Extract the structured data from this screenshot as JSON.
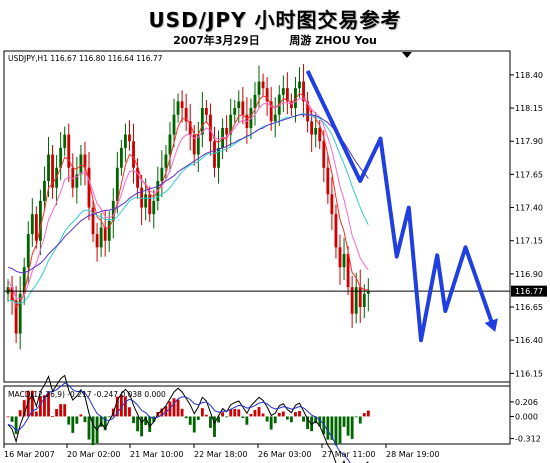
{
  "header": {
    "title": "USD/JPY 小时图交易参考",
    "subtitle_date": "2007年3月29日",
    "subtitle_author": "周游  ZHOU  You"
  },
  "main_panel": {
    "info_label": "USDJPY,H1  116.67 116.80 116.64 116.77",
    "price_badge": "116.77",
    "y_tick_labels": [
      "118.40",
      "118.15",
      "117.90",
      "117.65",
      "117.40",
      "117.15",
      "116.90",
      "116.65",
      "116.40",
      "116.15"
    ]
  },
  "macd_panel": {
    "info_label": "MACD(12,26,9) -0.217 -0.247 0.038 0.000",
    "y_tick_labels": [
      "0.206",
      "0.000",
      "-0.312"
    ]
  },
  "x_tick_labels": [
    "16 Mar 2007",
    "20 Mar 02:00",
    "21 Mar 10:00",
    "22 Mar 18:00",
    "26 Mar 03:00",
    "27 Mar 11:00",
    "28 Mar 19:00"
  ],
  "colors": {
    "bull_candle": "#006400",
    "bear_candle": "#cc0000",
    "annotation_arrow": "#1f3fe0",
    "ma_fast": "#ff2a2a",
    "ma_mid": "#ff66cc",
    "ma_cyan": "#33cccc",
    "ma_slow": "#5533cc",
    "background": "#ffffff"
  },
  "chart_data": [
    {
      "type": "candlestick",
      "symbol": "USDJPY",
      "timeframe": "H1",
      "last_bar": {
        "open": 116.67,
        "high": 116.8,
        "low": 116.64,
        "close": 116.77
      },
      "current_price": 116.77,
      "ylim": [
        116.1,
        118.55
      ],
      "y_ticks": [
        118.4,
        118.15,
        117.9,
        117.65,
        117.4,
        117.15,
        116.9,
        116.65,
        116.4,
        116.15
      ],
      "closes": [
        116.8,
        116.7,
        116.45,
        116.75,
        116.95,
        117.2,
        117.35,
        117.15,
        117.45,
        117.6,
        117.8,
        117.55,
        117.7,
        117.85,
        117.95,
        117.7,
        117.55,
        117.65,
        117.8,
        117.7,
        117.4,
        117.2,
        117.1,
        117.25,
        117.15,
        117.3,
        117.45,
        117.7,
        117.85,
        117.95,
        117.9,
        117.7,
        117.55,
        117.4,
        117.5,
        117.35,
        117.45,
        117.6,
        117.7,
        117.8,
        117.95,
        118.1,
        118.2,
        118.15,
        118.05,
        117.95,
        117.8,
        117.95,
        118.15,
        118.1,
        117.9,
        117.7,
        117.85,
        118.0,
        117.95,
        118.1,
        118.15,
        118.2,
        118.1,
        118.0,
        118.15,
        118.25,
        118.35,
        118.3,
        118.2,
        118.05,
        118.1,
        118.25,
        118.3,
        118.2,
        118.15,
        118.3,
        118.35,
        118.2,
        118.05,
        117.95,
        118.0,
        117.9,
        117.7,
        117.5,
        117.35,
        117.1,
        116.95,
        117.05,
        116.8,
        116.6,
        116.8,
        116.65,
        116.75,
        116.77
      ],
      "moving_averages": [
        {
          "color": "#ff2a2a",
          "values": [
            116.8,
            116.75,
            116.65,
            116.68,
            116.76,
            116.9,
            117.05,
            117.12,
            117.25,
            117.38,
            117.55,
            117.58,
            117.63,
            117.7,
            117.78,
            117.76,
            117.7,
            117.69,
            117.72,
            117.71,
            117.6,
            117.46,
            117.33,
            117.3,
            117.24,
            117.25,
            117.31,
            117.44,
            117.58,
            117.72,
            117.8,
            117.78,
            117.71,
            117.61,
            117.57,
            117.5,
            117.48,
            117.52,
            117.58,
            117.66,
            117.77,
            117.89,
            118.01,
            118.07,
            118.07,
            118.03,
            117.95,
            117.95,
            118.02,
            118.05,
            118.0,
            117.91,
            117.89,
            117.92,
            117.92,
            117.97,
            118.03,
            118.09,
            118.1,
            118.07,
            118.09,
            118.14,
            118.21,
            118.24,
            118.23,
            118.17,
            118.15,
            118.18,
            118.22,
            118.21,
            118.19,
            118.22,
            118.26,
            118.24,
            118.18,
            118.1,
            118.07,
            118.02,
            117.93,
            117.8,
            117.66,
            117.48,
            117.31,
            117.22,
            117.07,
            116.91,
            116.87,
            116.8,
            116.78,
            116.78
          ]
        },
        {
          "color": "#ff66cc",
          "values": [
            116.85,
            116.8,
            116.72,
            116.71,
            116.74,
            116.82,
            116.92,
            116.98,
            117.08,
            117.18,
            117.31,
            117.37,
            117.44,
            117.52,
            117.61,
            117.63,
            117.62,
            117.63,
            117.66,
            117.67,
            117.61,
            117.52,
            117.43,
            117.39,
            117.33,
            117.32,
            117.34,
            117.41,
            117.5,
            117.6,
            117.67,
            117.68,
            117.66,
            117.6,
            117.58,
            117.53,
            117.51,
            117.53,
            117.56,
            117.61,
            117.68,
            117.77,
            117.86,
            117.92,
            117.95,
            117.95,
            117.92,
            117.93,
            117.97,
            118.0,
            117.98,
            117.93,
            117.91,
            117.93,
            117.93,
            117.96,
            118.0,
            118.04,
            118.06,
            118.05,
            118.07,
            118.1,
            118.15,
            118.18,
            118.19,
            118.16,
            118.15,
            118.17,
            118.19,
            118.19,
            118.18,
            118.2,
            118.22,
            118.22,
            118.19,
            118.14,
            118.11,
            118.08,
            118.02,
            117.93,
            117.83,
            117.7,
            117.56,
            117.46,
            117.33,
            117.19,
            117.11,
            117.02,
            116.97,
            116.93
          ]
        },
        {
          "color": "#33cccc",
          "values": [
            116.7,
            116.7,
            116.68,
            116.68,
            116.69,
            116.73,
            116.78,
            116.82,
            116.87,
            116.93,
            117.0,
            117.05,
            117.1,
            117.16,
            117.22,
            117.26,
            117.29,
            117.32,
            117.36,
            117.38,
            117.38,
            117.36,
            117.34,
            117.33,
            117.31,
            117.31,
            117.31,
            117.33,
            117.37,
            117.41,
            117.45,
            117.47,
            117.48,
            117.47,
            117.47,
            117.47,
            117.47,
            117.48,
            117.5,
            117.52,
            117.55,
            117.59,
            117.63,
            117.67,
            117.7,
            117.72,
            117.73,
            117.75,
            117.77,
            117.8,
            117.81,
            117.81,
            117.82,
            117.83,
            117.84,
            117.86,
            117.88,
            117.9,
            117.92,
            117.93,
            117.95,
            117.97,
            117.99,
            118.01,
            118.02,
            118.03,
            118.04,
            118.05,
            118.07,
            118.08,
            118.08,
            118.09,
            118.1,
            118.11,
            118.1,
            118.09,
            118.08,
            118.07,
            118.04,
            118.0,
            117.95,
            117.88,
            117.8,
            117.73,
            117.65,
            117.56,
            117.48,
            117.4,
            117.33,
            117.27
          ]
        },
        {
          "color": "#5533cc",
          "values": [
            116.95,
            116.94,
            116.92,
            116.91,
            116.91,
            116.92,
            116.94,
            116.96,
            116.98,
            117.01,
            117.05,
            117.08,
            117.11,
            117.14,
            117.18,
            117.21,
            117.24,
            117.27,
            117.3,
            117.32,
            117.34,
            117.35,
            117.36,
            117.37,
            117.38,
            117.38,
            117.39,
            117.4,
            117.42,
            117.44,
            117.47,
            117.49,
            117.51,
            117.52,
            117.53,
            117.54,
            117.55,
            117.56,
            117.58,
            117.6,
            117.62,
            117.64,
            117.67,
            117.69,
            117.71,
            117.73,
            117.75,
            117.77,
            117.79,
            117.81,
            117.82,
            117.83,
            117.84,
            117.85,
            117.86,
            117.88,
            117.89,
            117.91,
            117.92,
            117.94,
            117.95,
            117.97,
            117.99,
            118.0,
            118.02,
            118.03,
            118.04,
            118.05,
            118.06,
            118.07,
            118.08,
            118.09,
            118.1,
            118.1,
            118.1,
            118.1,
            118.09,
            118.08,
            118.06,
            118.04,
            118.01,
            117.97,
            117.93,
            117.89,
            117.84,
            117.79,
            117.74,
            117.7,
            117.66,
            117.62
          ]
        }
      ],
      "annotation_zigzag": [
        {
          "bar": 74,
          "price": 118.43
        },
        {
          "bar": 87,
          "price": 117.6
        },
        {
          "bar": 92,
          "price": 117.92
        },
        {
          "bar": 96,
          "price": 117.03
        },
        {
          "bar": 99,
          "price": 117.4
        },
        {
          "bar": 102,
          "price": 116.4
        },
        {
          "bar": 106,
          "price": 117.04
        },
        {
          "bar": 108,
          "price": 116.62
        },
        {
          "bar": 113,
          "price": 117.1
        },
        {
          "bar": 120,
          "price": 116.49
        }
      ],
      "x_tick_labels": [
        "16 Mar 2007",
        "20 Mar 02:00",
        "21 Mar 10:00",
        "22 Mar 18:00",
        "26 Mar 03:00",
        "27 Mar 11:00",
        "28 Mar 19:00"
      ]
    },
    {
      "type": "macd",
      "params": "12,26,9",
      "values": {
        "macd": -0.217,
        "signal": -0.247,
        "histogram": 0.038,
        "zero": 0.0
      },
      "ylim": [
        -0.36,
        0.26
      ],
      "y_ticks": [
        0.206,
        0.0,
        -0.312
      ]
    }
  ]
}
